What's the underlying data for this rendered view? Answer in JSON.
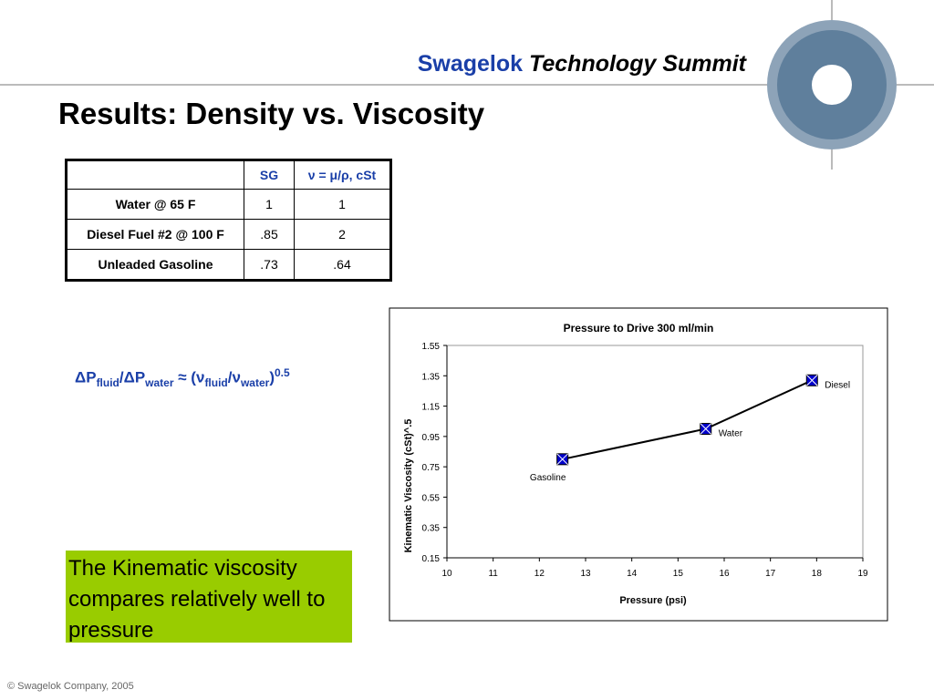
{
  "header": {
    "brand": "Swagelok",
    "event": "Technology Summit"
  },
  "title": "Results: Density vs. Viscosity",
  "table": {
    "columns": [
      "SG",
      "ν = μ/ρ, cSt"
    ],
    "rows": [
      [
        "Water @ 65 F",
        "1",
        "1"
      ],
      [
        "Diesel Fuel #2 @ 100 F",
        ".85",
        "2"
      ],
      [
        "Unleaded Gasoline",
        ".73",
        ".64"
      ]
    ]
  },
  "formula": [
    {
      "text": "ΔP"
    },
    {
      "sub": "fluid"
    },
    {
      "text": "/ΔP"
    },
    {
      "sub": "water"
    },
    {
      "text": " ≈ (ν"
    },
    {
      "sub": "fluid"
    },
    {
      "text": "/ν"
    },
    {
      "sub": "water"
    },
    {
      "text": ")"
    },
    {
      "sup": "0.5"
    }
  ],
  "note": "The Kinematic viscosity compares relatively well to pressure",
  "footer": "© Swagelok Company, 2005",
  "chart_data": {
    "type": "line",
    "title": "Pressure to Drive 300 ml/min",
    "x_label": "Pressure (psi)",
    "y_label": "Kinematic Viscosity (cSt)^.5",
    "series": [
      {
        "color": "#0000cc",
        "line_color": "#000000",
        "x": [
          12.5,
          15.6,
          17.9
        ],
        "values": [
          0.8,
          1.0,
          1.32
        ],
        "point_labels": [
          "Gasoline",
          "Water",
          "Diesel"
        ]
      }
    ],
    "xlim": [
      10,
      19
    ],
    "xticks": [
      10,
      11,
      12,
      13,
      14,
      15,
      16,
      17,
      18,
      19
    ],
    "ylim": [
      0.15,
      1.55
    ],
    "yticks": [
      0.15,
      0.35,
      0.55,
      0.75,
      0.95,
      1.15,
      1.35,
      1.55
    ],
    "grid": false
  }
}
